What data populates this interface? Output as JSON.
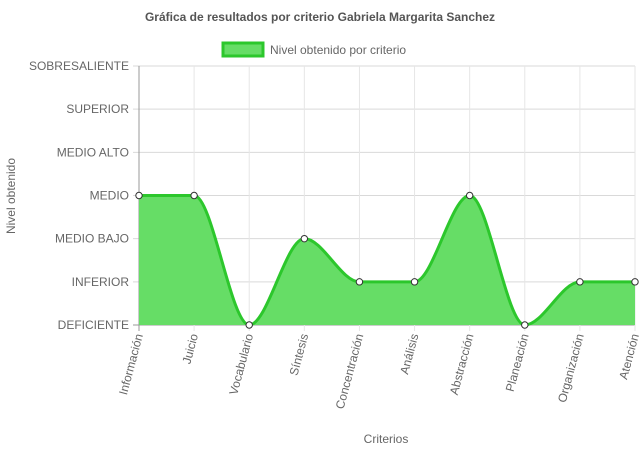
{
  "chart_data": {
    "type": "line",
    "title": "Gráfica de resultados por criterio Gabriela Margarita Sanchez",
    "xlabel": "Criterios",
    "ylabel": "Nivel obtenido",
    "categories": [
      "Información",
      "Juicio",
      "Vocabulario",
      "Síntesis",
      "Concentración",
      "Análisis",
      "Abstracción",
      "Planeación",
      "Organización",
      "Atención"
    ],
    "y_levels": [
      "DEFICIENTE",
      "INFERIOR",
      "MEDIO BAJO",
      "MEDIO",
      "MEDIO ALTO",
      "SUPERIOR",
      "SOBRESALIENTE"
    ],
    "ylim": [
      0,
      6
    ],
    "series": [
      {
        "name": "Nivel obtenido por criterio",
        "values": [
          3,
          3,
          0,
          2,
          1,
          1,
          3,
          0,
          1,
          1
        ],
        "color": "#2cc72c",
        "fill": "#66dd66"
      }
    ],
    "legend": "top",
    "grid": true,
    "area_fill": true
  }
}
